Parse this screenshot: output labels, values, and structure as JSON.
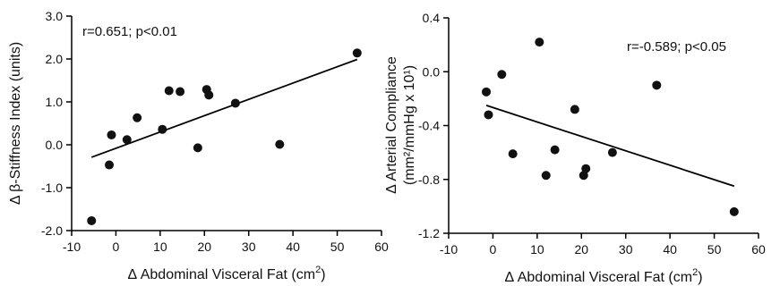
{
  "chart_data": [
    {
      "type": "scatter",
      "xlabel": "Δ Abdominal Visceral Fat (cm²)",
      "xlabel_base": "Δ Abdominal Visceral Fat (cm",
      "xlabel_sup": "2",
      "xlabel_end": ")",
      "ylabel": "Δ β-Stiffness Index (units)",
      "annotation": "r=0.651; p<0.01",
      "xlim": [
        -10,
        60
      ],
      "ylim": [
        -2.0,
        3.0
      ],
      "x_ticks": [
        "-10",
        "0",
        "10",
        "20",
        "30",
        "40",
        "50",
        "60"
      ],
      "y_ticks": [
        "-2.0",
        "-1.0",
        "0.0",
        "1.0",
        "2.0",
        "3.0"
      ],
      "points": [
        {
          "x": -5.5,
          "y": -1.77
        },
        {
          "x": -1.5,
          "y": -0.47
        },
        {
          "x": -1.0,
          "y": 0.23
        },
        {
          "x": 2.5,
          "y": 0.12
        },
        {
          "x": 4.8,
          "y": 0.63
        },
        {
          "x": 10.5,
          "y": 0.36
        },
        {
          "x": 12.0,
          "y": 1.26
        },
        {
          "x": 14.5,
          "y": 1.24
        },
        {
          "x": 18.5,
          "y": -0.07
        },
        {
          "x": 20.5,
          "y": 1.29
        },
        {
          "x": 21.0,
          "y": 1.16
        },
        {
          "x": 27.0,
          "y": 0.97
        },
        {
          "x": 37.0,
          "y": 0.01
        },
        {
          "x": 54.5,
          "y": 2.14
        }
      ],
      "fit_line": [
        {
          "x": -5.5,
          "y": -0.29
        },
        {
          "x": 54.5,
          "y": 1.99
        }
      ]
    },
    {
      "type": "scatter",
      "xlabel": "Δ Abdominal Visceral Fat (cm²)",
      "xlabel_base": "Δ Abdominal Visceral Fat (cm",
      "xlabel_sup": "2",
      "xlabel_end": ")",
      "ylabel": "Δ Arterial Compliance (mm²/mmHg x 10¹)",
      "ylabel_line1": "Δ Arterial Compliance",
      "ylabel_line2": "(mm²/mmHg x 10¹)",
      "annotation": "r=-0.589; p<0.05",
      "xlim": [
        -10,
        60
      ],
      "ylim": [
        -1.2,
        0.4
      ],
      "x_ticks": [
        "-10",
        "0",
        "10",
        "20",
        "30",
        "40",
        "50",
        "60"
      ],
      "y_ticks": [
        "-1.2",
        "-0.8",
        "-0.4",
        "0.0",
        "0.4"
      ],
      "points": [
        {
          "x": -1.5,
          "y": -0.15
        },
        {
          "x": -1.0,
          "y": -0.32
        },
        {
          "x": 2.0,
          "y": -0.02
        },
        {
          "x": 4.5,
          "y": -0.61
        },
        {
          "x": 10.5,
          "y": 0.22
        },
        {
          "x": 12.0,
          "y": -0.77
        },
        {
          "x": 14.0,
          "y": -0.58
        },
        {
          "x": 18.5,
          "y": -0.28
        },
        {
          "x": 20.5,
          "y": -0.77
        },
        {
          "x": 21.0,
          "y": -0.72
        },
        {
          "x": 27.0,
          "y": -0.6
        },
        {
          "x": 37.0,
          "y": -0.1
        },
        {
          "x": 54.5,
          "y": -1.04
        }
      ],
      "fit_line": [
        {
          "x": -1.5,
          "y": -0.25
        },
        {
          "x": 54.5,
          "y": -0.85
        }
      ]
    }
  ]
}
